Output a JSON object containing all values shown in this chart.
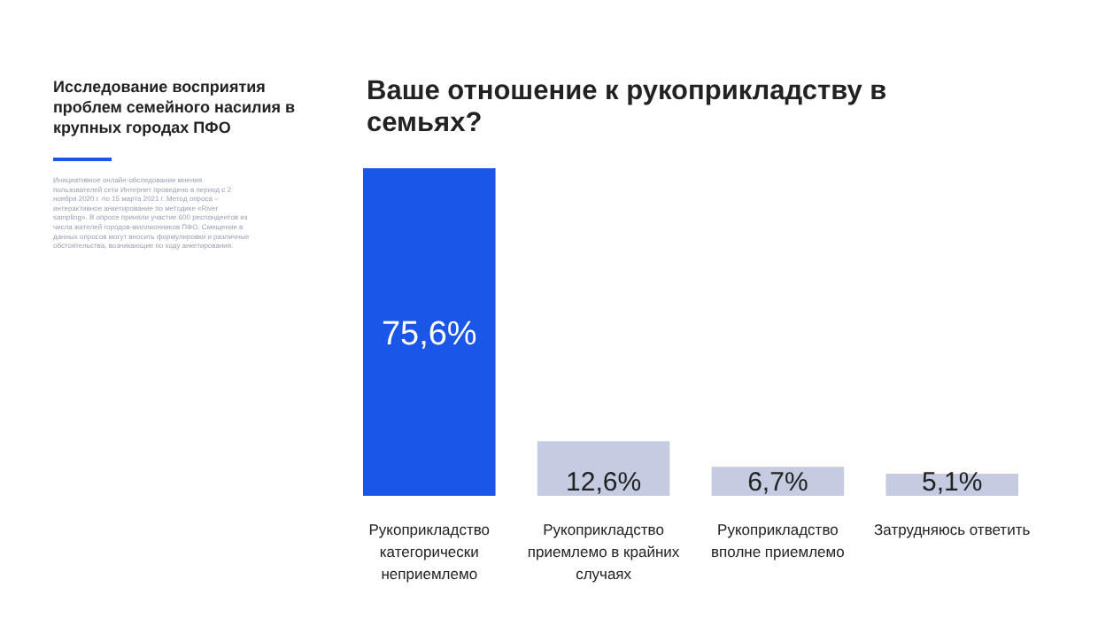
{
  "chart_data": {
    "type": "bar",
    "title": "Ваше отношение к рукоприкладству в семьях?",
    "subtitle": "Исследование восприятия проблем семейного насилия в крупных городах ПФО",
    "annotations": [
      "Инициативное онлайн-обследование мнения пользователей сети Интернет проведено в период с 2 ноября 2020 г. по 15 марта 2021 г. Метод опроса – интерактивное анкетирование по методике «River sampling». В опросе приняли участие 600 респондентов из числа жителей городов-миллионников ПФО. Смещение в данных опросов могут вносить формулировки и различные обстоятельства, возникающие по ходу анкетирования."
    ],
    "categories": [
      "Рукоприкладство категорически неприемлемо",
      "Рукоприкладство приемлемо в крайних случаях",
      "Рукоприкладство вполне приемлемо",
      "Затрудняюсь ответить"
    ],
    "values": [
      75.6,
      12.6,
      6.7,
      5.1
    ],
    "value_labels": [
      "75,6%",
      "12,6%",
      "6,7%",
      "5,1%"
    ],
    "colors": [
      "#1a56e8",
      "#c5cbe0",
      "#c5cbe0",
      "#c5cbe0"
    ]
  }
}
